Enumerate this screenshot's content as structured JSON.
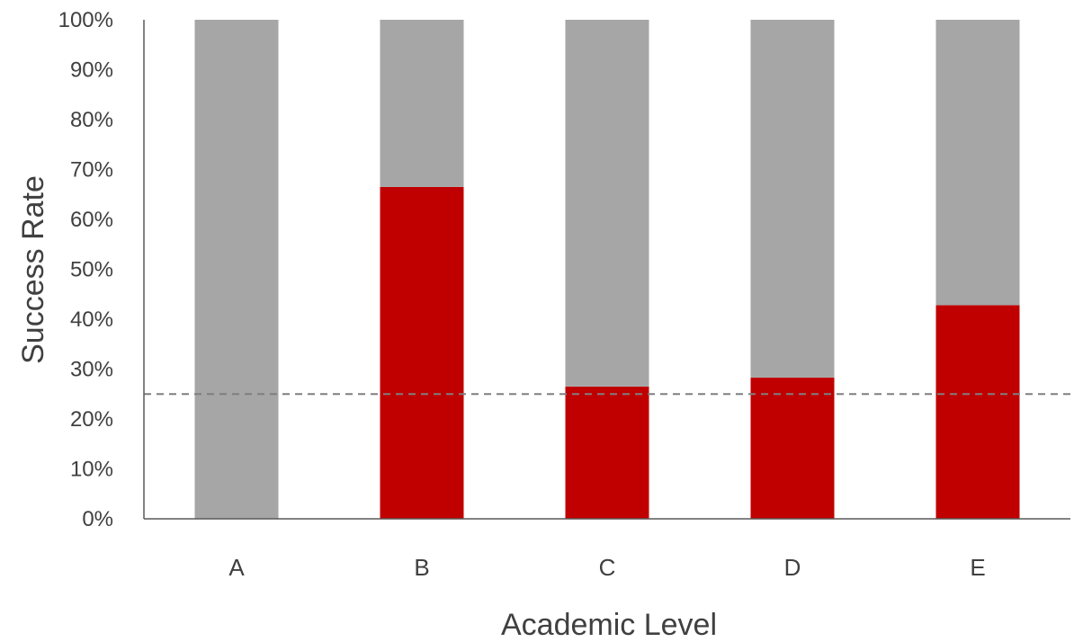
{
  "chart_data": {
    "type": "bar",
    "stacked": true,
    "categories": [
      "A",
      "B",
      "C",
      "D",
      "E"
    ],
    "series": [
      {
        "color": "#c00000",
        "values": [
          0,
          66.5,
          26.5,
          28.3,
          42.8
        ]
      },
      {
        "color": "#a6a6a6",
        "values": [
          100,
          33.5,
          73.5,
          71.7,
          57.2
        ]
      }
    ],
    "reference_line": {
      "value": 25,
      "style": "dashed",
      "color": "#7f7f7f"
    },
    "xlabel": "Academic Level",
    "ylabel": "Success Rate",
    "ylim": [
      0,
      100
    ],
    "yticks": [
      "0%",
      "10%",
      "20%",
      "30%",
      "40%",
      "50%",
      "60%",
      "70%",
      "80%",
      "90%",
      "100%"
    ],
    "grid": false,
    "legend": "none"
  }
}
